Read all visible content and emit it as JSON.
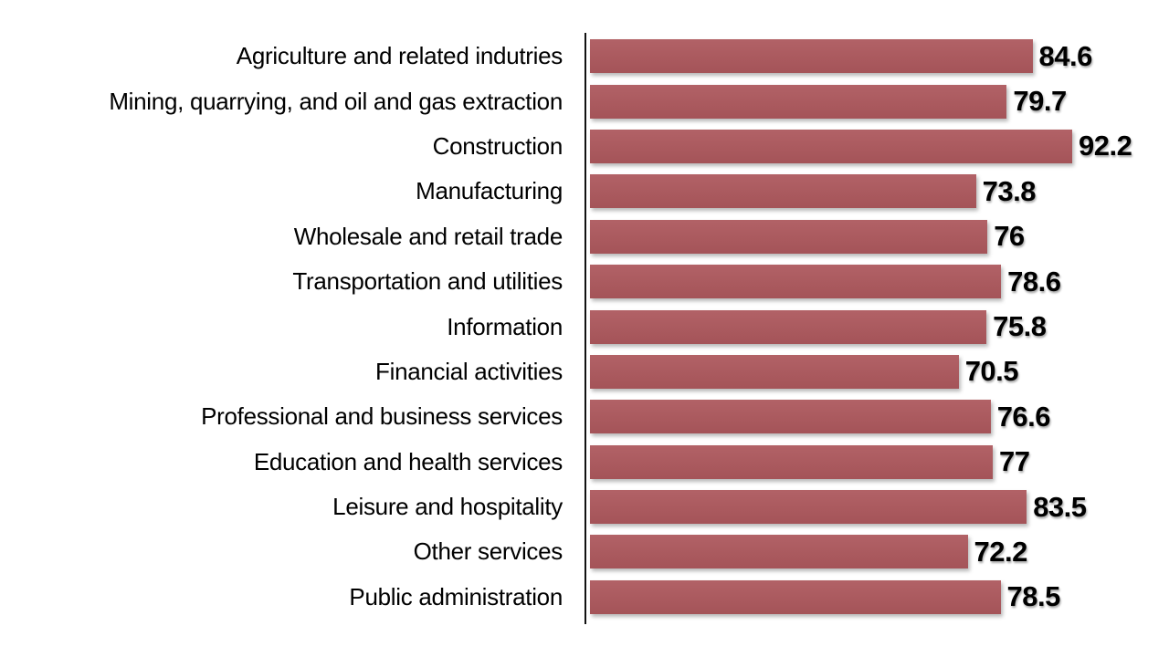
{
  "chart_data": {
    "type": "bar",
    "orientation": "horizontal",
    "title": "",
    "xlabel": "",
    "ylabel": "",
    "xlim": [
      0,
      100
    ],
    "grid": false,
    "legend": false,
    "categories": [
      "Agriculture and related indutries",
      "Mining, quarrying, and oil and gas extraction",
      "Construction",
      "Manufacturing",
      "Wholesale and retail trade",
      "Transportation and utilities",
      "Information",
      "Financial activities",
      "Professional and business services",
      "Education and health services",
      "Leisure and hospitality",
      "Other services",
      "Public administration"
    ],
    "values": [
      84.6,
      79.7,
      92.2,
      73.8,
      76,
      78.6,
      75.8,
      70.5,
      76.6,
      77,
      83.5,
      72.2,
      78.5
    ],
    "value_labels": [
      "84.6",
      "79.7",
      "92.2",
      "73.8",
      "76",
      "78.6",
      "75.8",
      "70.5",
      "76.6",
      "77",
      "83.5",
      "72.2",
      "78.5"
    ]
  },
  "colors": {
    "bar": "#ad585d",
    "axis": "#111111",
    "background": "#ffffff",
    "label_text": "#000000",
    "value_text": "#000000"
  }
}
